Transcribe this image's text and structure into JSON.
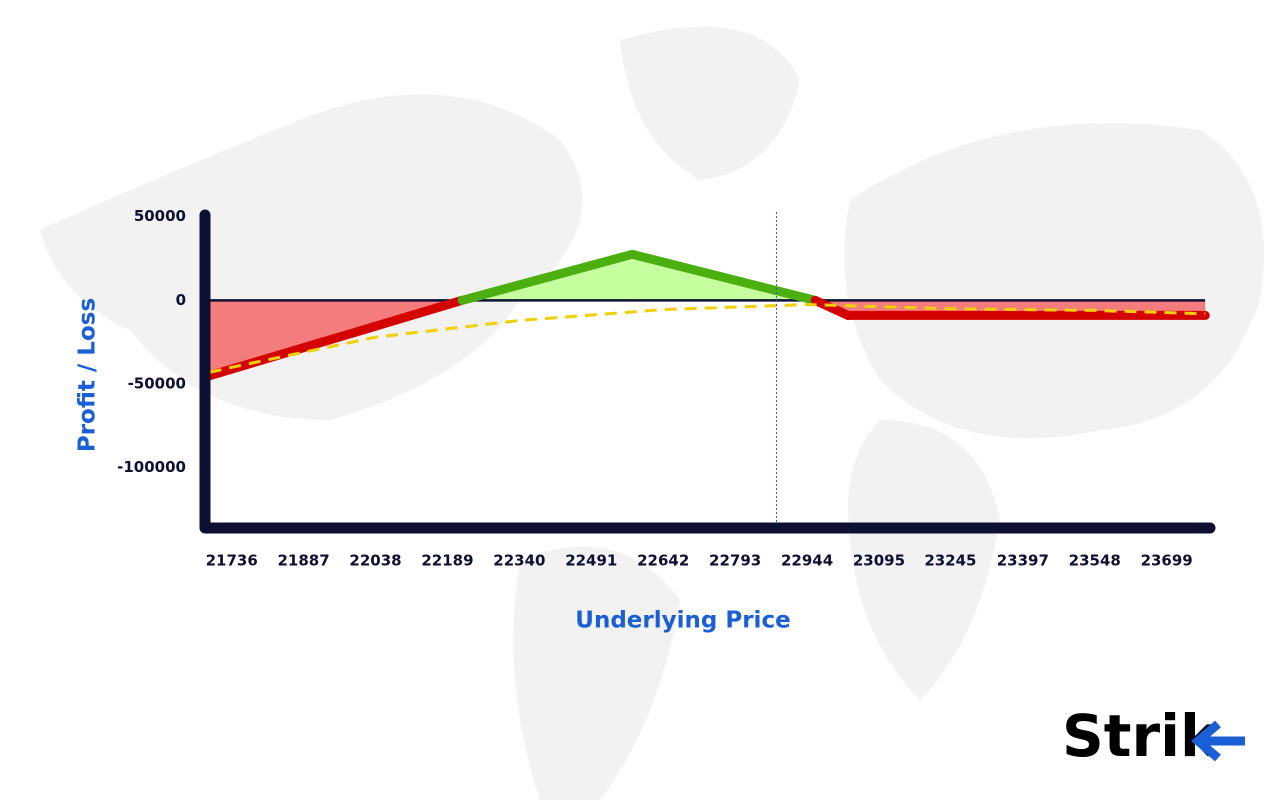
{
  "chart_data": {
    "type": "payoff",
    "x_label": "Underlying Price",
    "y_label": "Profit / Loss",
    "xlim": [
      21680,
      23790
    ],
    "ylim": [
      -136000,
      51000
    ],
    "xticks": [
      21736,
      21887,
      22038,
      22189,
      22340,
      22491,
      22642,
      22793,
      22944,
      23095,
      23245,
      23397,
      23548,
      23699
    ],
    "yticks": [
      50000,
      0,
      -50000,
      -100000
    ],
    "grid": false,
    "series": [
      {
        "style": "payoff",
        "colors": {
          "profit": "#4caf10",
          "loss": "#d40000",
          "profit_fill": "#c5ff9e",
          "loss_fill": "#f47c7c"
        },
        "x": [
          21690,
          22220,
          22577,
          22961,
          23030,
          23780
        ],
        "values": [
          -45000,
          0,
          27500,
          0,
          -9000,
          -9000
        ]
      },
      {
        "style": "dashed",
        "color": "#f0d000",
        "x": [
          21690,
          21736,
          22038,
          22340,
          22642,
          22944,
          23245,
          23548,
          23780
        ],
        "values": [
          -43000,
          -40000,
          -22000,
          -12000,
          -5500,
          -2500,
          -5000,
          -6000,
          -8000
        ]
      }
    ],
    "vline_x": 22880,
    "logo": "Strik"
  }
}
